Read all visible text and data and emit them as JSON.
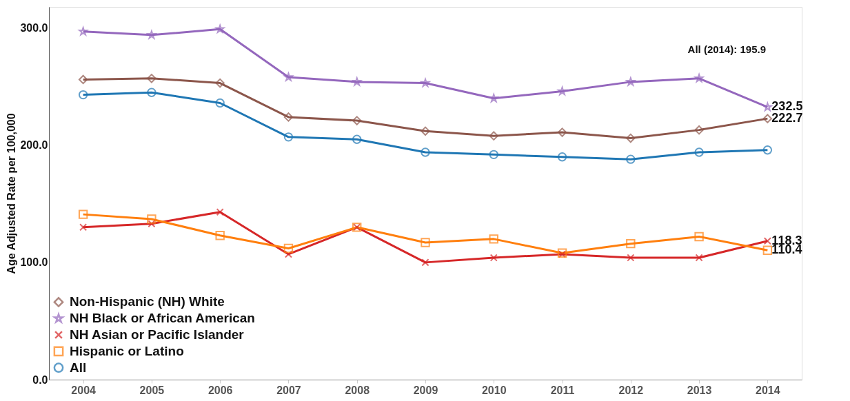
{
  "chart_data": {
    "type": "line",
    "ylabel": "Age Adjusted Rate per 100,000",
    "categories": [
      "2004",
      "2005",
      "2006",
      "2007",
      "2008",
      "2009",
      "2010",
      "2011",
      "2012",
      "2013",
      "2014"
    ],
    "ylim": [
      0,
      318
    ],
    "yticks": [
      {
        "value": 0,
        "label": "0.0"
      },
      {
        "value": 100,
        "label": "100.0"
      },
      {
        "value": 200,
        "label": "200.0"
      },
      {
        "value": 300,
        "label": "300.0"
      }
    ],
    "grid": false,
    "legend": "bottom left",
    "line_style": "solid",
    "annotations": [
      "All (2014): 195.9"
    ],
    "series": [
      {
        "name": "Non-Hispanic (NH) White",
        "color": "#8c564b",
        "marker": "diamond",
        "values": [
          256,
          257,
          253,
          224,
          221,
          212,
          208,
          211,
          206,
          213,
          222.7
        ],
        "value_labels": [
          null,
          null,
          null,
          null,
          null,
          null,
          null,
          null,
          null,
          null,
          "222.7"
        ]
      },
      {
        "name": "NH Black or African American",
        "color": "#9467bd",
        "marker": "star",
        "values": [
          297,
          294,
          299,
          258,
          254,
          253,
          240,
          246,
          254,
          257,
          232.5
        ],
        "value_labels": [
          null,
          null,
          null,
          null,
          null,
          null,
          null,
          null,
          null,
          null,
          "232.5"
        ]
      },
      {
        "name": "NH Asian or Pacific Islander",
        "color": "#d62728",
        "marker": "cross",
        "values": [
          130,
          133,
          143,
          107,
          130,
          100,
          104,
          107,
          104,
          104,
          118.3
        ],
        "value_labels": [
          null,
          null,
          null,
          null,
          null,
          null,
          null,
          null,
          null,
          null,
          "118.3"
        ]
      },
      {
        "name": "Hispanic or Latino",
        "color": "#ff7f0e",
        "marker": "square",
        "values": [
          141,
          137,
          123,
          112,
          130,
          117,
          120,
          108,
          116,
          122,
          110.4
        ],
        "value_labels": [
          null,
          null,
          null,
          null,
          null,
          null,
          null,
          null,
          null,
          null,
          "110.4"
        ]
      },
      {
        "name": "All",
        "color": "#1f77b4",
        "marker": "circle",
        "values": [
          243,
          245,
          236,
          207,
          205,
          194,
          192,
          190,
          188,
          194,
          195.9
        ]
      }
    ]
  }
}
